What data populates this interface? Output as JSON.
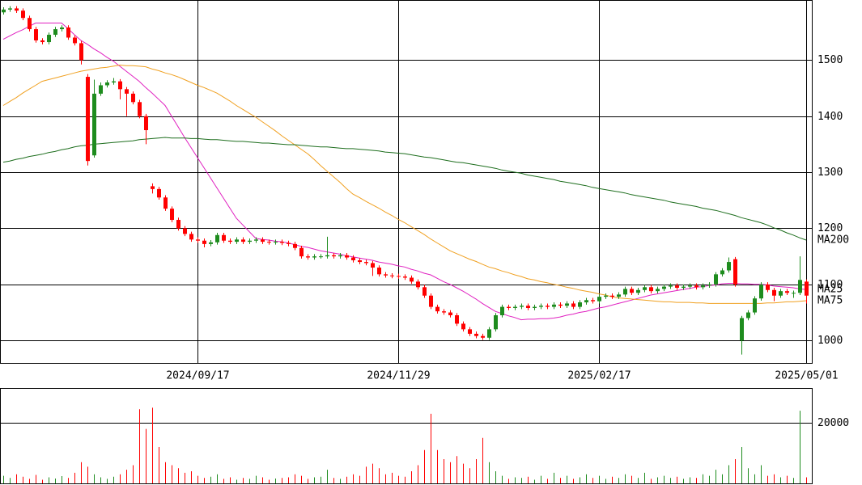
{
  "chart_data": {
    "type": "candlestick",
    "categories": [
      null,
      null,
      null,
      null,
      null,
      null,
      null,
      null,
      null,
      null,
      null,
      null,
      null,
      null,
      null,
      null,
      null,
      null,
      null,
      null,
      null,
      null,
      null,
      null,
      null,
      null,
      null,
      null,
      null,
      null,
      "2024/09/17",
      null,
      null,
      null,
      null,
      null,
      null,
      null,
      null,
      null,
      null,
      null,
      null,
      null,
      null,
      null,
      null,
      null,
      null,
      null,
      null,
      null,
      null,
      null,
      null,
      null,
      null,
      null,
      null,
      null,
      null,
      "2024/11/29",
      null,
      null,
      null,
      null,
      null,
      null,
      null,
      null,
      null,
      null,
      null,
      null,
      null,
      null,
      null,
      null,
      null,
      null,
      null,
      null,
      null,
      null,
      null,
      null,
      null,
      null,
      null,
      null,
      null,
      null,
      "2025/02/17",
      null,
      null,
      null,
      null,
      null,
      null,
      null,
      null,
      null,
      null,
      null,
      null,
      null,
      null,
      null,
      null,
      null,
      null,
      null,
      null,
      null,
      null,
      null,
      null,
      null,
      null,
      null,
      null,
      null,
      null,
      null,
      "2025/05/01"
    ],
    "open": [
      1585,
      1590,
      1592,
      1588,
      1575,
      1555,
      1535,
      1532,
      1545,
      1555,
      1558,
      1540,
      1530,
      1470,
      1330,
      1440,
      1455,
      1460,
      1462,
      1448,
      1440,
      1425,
      1400,
      1275,
      1270,
      1255,
      1235,
      1215,
      1200,
      1190,
      1180,
      1178,
      1172,
      1175,
      1188,
      1178,
      1176,
      1180,
      1176,
      1178,
      1180,
      1176,
      1175,
      1176,
      1174,
      1172,
      1165,
      1150,
      1148,
      1150,
      1150,
      1152,
      1150,
      1152,
      1148,
      1143,
      1140,
      1138,
      1130,
      1118,
      1116,
      1115,
      1114,
      1112,
      1105,
      1095,
      1080,
      1060,
      1052,
      1050,
      1045,
      1030,
      1020,
      1012,
      1008,
      1005,
      1020,
      1045,
      1060,
      1058,
      1060,
      1062,
      1058,
      1060,
      1062,
      1060,
      1064,
      1062,
      1066,
      1060,
      1068,
      1072,
      1070,
      1078,
      1080,
      1078,
      1082,
      1092,
      1085,
      1090,
      1095,
      1088,
      1092,
      1096,
      1098,
      1094,
      1096,
      1098,
      1095,
      1098,
      1100,
      1118,
      1125,
      1145,
      1000,
      1040,
      1050,
      1075,
      1100,
      1090,
      1080,
      1088,
      1085,
      1085,
      1105
    ],
    "high": [
      1594,
      1596,
      1596,
      1592,
      1579,
      1559,
      1539,
      1549,
      1559,
      1562,
      1562,
      1544,
      1534,
      1475,
      1465,
      1460,
      1464,
      1468,
      1466,
      1452,
      1444,
      1429,
      1404,
      1280,
      1274,
      1259,
      1239,
      1219,
      1204,
      1194,
      1184,
      1182,
      1179,
      1192,
      1192,
      1182,
      1184,
      1184,
      1182,
      1184,
      1184,
      1180,
      1180,
      1180,
      1178,
      1176,
      1169,
      1154,
      1154,
      1154,
      1185,
      1156,
      1156,
      1156,
      1152,
      1147,
      1144,
      1142,
      1134,
      1122,
      1120,
      1119,
      1118,
      1116,
      1109,
      1099,
      1084,
      1064,
      1056,
      1054,
      1049,
      1034,
      1024,
      1016,
      1012,
      1024,
      1049,
      1064,
      1064,
      1064,
      1066,
      1066,
      1064,
      1066,
      1066,
      1068,
      1068,
      1070,
      1070,
      1072,
      1076,
      1076,
      1082,
      1084,
      1084,
      1086,
      1096,
      1096,
      1094,
      1099,
      1099,
      1096,
      1100,
      1102,
      1102,
      1100,
      1102,
      1102,
      1102,
      1104,
      1122,
      1129,
      1148,
      1149,
      1044,
      1054,
      1079,
      1104,
      1104,
      1094,
      1092,
      1092,
      1089,
      1150,
      1109
    ],
    "low": [
      1581,
      1586,
      1584,
      1571,
      1551,
      1531,
      1528,
      1528,
      1541,
      1551,
      1536,
      1526,
      1492,
      1312,
      1326,
      1436,
      1451,
      1456,
      1430,
      1400,
      1421,
      1396,
      1350,
      1262,
      1251,
      1231,
      1211,
      1196,
      1186,
      1176,
      1174,
      1166,
      1168,
      1171,
      1174,
      1172,
      1172,
      1172,
      1172,
      1174,
      1172,
      1171,
      1171,
      1170,
      1168,
      1161,
      1146,
      1144,
      1144,
      1146,
      1146,
      1146,
      1146,
      1144,
      1139,
      1136,
      1134,
      1115,
      1114,
      1112,
      1111,
      1110,
      1108,
      1101,
      1091,
      1076,
      1056,
      1048,
      1046,
      1041,
      1026,
      1016,
      1008,
      1004,
      1001,
      1001,
      1016,
      1041,
      1054,
      1054,
      1056,
      1054,
      1054,
      1056,
      1056,
      1056,
      1058,
      1058,
      1056,
      1056,
      1064,
      1066,
      1066,
      1074,
      1074,
      1074,
      1078,
      1081,
      1081,
      1086,
      1084,
      1084,
      1088,
      1092,
      1090,
      1090,
      1092,
      1091,
      1091,
      1094,
      1096,
      1114,
      1121,
      1096,
      975,
      1036,
      1046,
      1071,
      1086,
      1070,
      1076,
      1081,
      1076,
      1081,
      1066
    ],
    "close": [
      1590,
      1592,
      1588,
      1575,
      1555,
      1535,
      1532,
      1545,
      1555,
      1558,
      1540,
      1530,
      1500,
      1320,
      1440,
      1455,
      1460,
      1462,
      1448,
      1440,
      1425,
      1400,
      1375,
      1270,
      1255,
      1235,
      1215,
      1200,
      1190,
      1180,
      1178,
      1172,
      1175,
      1188,
      1178,
      1176,
      1180,
      1176,
      1178,
      1180,
      1176,
      1175,
      1176,
      1174,
      1172,
      1165,
      1150,
      1148,
      1150,
      1150,
      1152,
      1150,
      1152,
      1148,
      1143,
      1140,
      1138,
      1130,
      1118,
      1116,
      1115,
      1114,
      1112,
      1105,
      1095,
      1080,
      1060,
      1052,
      1050,
      1045,
      1030,
      1020,
      1012,
      1008,
      1005,
      1020,
      1045,
      1060,
      1058,
      1060,
      1062,
      1058,
      1060,
      1062,
      1060,
      1064,
      1062,
      1066,
      1060,
      1068,
      1072,
      1070,
      1078,
      1080,
      1078,
      1082,
      1092,
      1085,
      1090,
      1095,
      1088,
      1092,
      1096,
      1098,
      1094,
      1096,
      1098,
      1095,
      1098,
      1100,
      1118,
      1125,
      1140,
      1100,
      1040,
      1050,
      1075,
      1100,
      1090,
      1080,
      1088,
      1085,
      1085,
      1108,
      1080
    ],
    "up_color": "#1e8c1e",
    "down_color": "#ff0000",
    "ylim": [
      960,
      1607
    ],
    "yticks": [
      1000,
      1100,
      1200,
      1300,
      1400,
      1500
    ],
    "moving_averages": [
      {
        "name": "MA25",
        "color": "#e020c0",
        "values": [
          1537,
          1543,
          1549,
          1554,
          1560,
          1566,
          1566,
          1566,
          1566,
          1566,
          1556,
          1545,
          1535,
          1528,
          1520,
          1513,
          1505,
          1498,
          1489,
          1480,
          1471,
          1462,
          1451,
          1441,
          1430,
          1419,
          1400,
          1381,
          1362,
          1344,
          1326,
          1308,
          1290,
          1272,
          1254,
          1236,
          1218,
          1206,
          1194,
          1182,
          1180,
          1179,
          1177,
          1176,
          1174,
          1171,
          1168,
          1166,
          1163,
          1160,
          1158,
          1156,
          1154,
          1151,
          1149,
          1147,
          1145,
          1143,
          1140,
          1138,
          1136,
          1133,
          1131,
          1127,
          1124,
          1120,
          1117,
          1111,
          1105,
          1100,
          1094,
          1088,
          1081,
          1074,
          1066,
          1059,
          1052,
          1048,
          1044,
          1041,
          1037,
          1038,
          1038,
          1039,
          1039,
          1040,
          1042,
          1045,
          1047,
          1050,
          1052,
          1055,
          1058,
          1060,
          1063,
          1066,
          1069,
          1072,
          1075,
          1078,
          1081,
          1083,
          1085,
          1087,
          1089,
          1091,
          1093,
          1095,
          1096,
          1098,
          1099,
          1101,
          1102,
          1102,
          1101,
          1101,
          1100,
          1100,
          1099,
          1097,
          1096,
          1095,
          1094,
          1092,
          1091
        ]
      },
      {
        "name": "MA75",
        "color": "#f0a020",
        "values": [
          1419,
          1426,
          1433,
          1441,
          1448,
          1455,
          1462,
          1465,
          1468,
          1471,
          1474,
          1477,
          1480,
          1482,
          1484,
          1486,
          1487,
          1489,
          1491,
          1490,
          1490,
          1489,
          1488,
          1484,
          1481,
          1477,
          1474,
          1470,
          1465,
          1460,
          1455,
          1451,
          1446,
          1441,
          1434,
          1427,
          1419,
          1412,
          1405,
          1398,
          1390,
          1382,
          1374,
          1365,
          1357,
          1349,
          1341,
          1333,
          1323,
          1312,
          1302,
          1292,
          1282,
          1271,
          1261,
          1255,
          1248,
          1242,
          1236,
          1229,
          1223,
          1216,
          1210,
          1203,
          1196,
          1189,
          1181,
          1174,
          1167,
          1160,
          1155,
          1150,
          1145,
          1141,
          1136,
          1131,
          1128,
          1124,
          1121,
          1117,
          1114,
          1110,
          1108,
          1105,
          1103,
          1100,
          1098,
          1095,
          1093,
          1090,
          1088,
          1086,
          1083,
          1081,
          1078,
          1076,
          1075,
          1074,
          1073,
          1072,
          1071,
          1070,
          1069,
          1069,
          1068,
          1068,
          1068,
          1067,
          1067,
          1066,
          1066,
          1066,
          1066,
          1066,
          1066,
          1066,
          1066,
          1066,
          1067,
          1067,
          1068,
          1069,
          1069,
          1070,
          1071
        ]
      },
      {
        "name": "MA200",
        "color": "#1e6e1e",
        "values": [
          1318,
          1320,
          1323,
          1325,
          1328,
          1330,
          1332,
          1335,
          1337,
          1340,
          1342,
          1345,
          1347,
          1348,
          1350,
          1351,
          1352,
          1353,
          1354,
          1355,
          1356,
          1358,
          1359,
          1360,
          1361,
          1362,
          1361,
          1361,
          1361,
          1360,
          1360,
          1359,
          1358,
          1358,
          1357,
          1356,
          1355,
          1355,
          1354,
          1353,
          1352,
          1352,
          1351,
          1350,
          1349,
          1349,
          1348,
          1347,
          1346,
          1345,
          1345,
          1344,
          1343,
          1342,
          1342,
          1341,
          1340,
          1339,
          1338,
          1336,
          1335,
          1334,
          1333,
          1331,
          1329,
          1327,
          1326,
          1324,
          1322,
          1320,
          1318,
          1317,
          1315,
          1313,
          1311,
          1309,
          1307,
          1304,
          1302,
          1300,
          1298,
          1295,
          1293,
          1291,
          1289,
          1287,
          1284,
          1282,
          1280,
          1278,
          1276,
          1273,
          1271,
          1269,
          1267,
          1265,
          1263,
          1260,
          1258,
          1256,
          1254,
          1252,
          1250,
          1247,
          1245,
          1243,
          1241,
          1239,
          1236,
          1234,
          1232,
          1229,
          1226,
          1223,
          1219,
          1216,
          1213,
          1210,
          1206,
          1201,
          1197,
          1192,
          1188,
          1183,
          1179
        ]
      }
    ],
    "volume": {
      "values": [
        2500,
        1800,
        3000,
        2200,
        1500,
        2800,
        1200,
        2000,
        1600,
        2400,
        1800,
        3500,
        7000,
        5500,
        3000,
        2000,
        1500,
        2200,
        3000,
        4500,
        6000,
        24500,
        18000,
        25000,
        12000,
        7000,
        6000,
        5000,
        3500,
        4000,
        2500,
        1800,
        2200,
        3000,
        1500,
        2000,
        1200,
        1800,
        1500,
        2500,
        2000,
        1200,
        1600,
        1800,
        2000,
        3000,
        2500,
        1500,
        2000,
        2200,
        4500,
        1800,
        1500,
        2200,
        3000,
        2500,
        5500,
        6500,
        5000,
        3000,
        3500,
        2500,
        2200,
        4000,
        6000,
        11000,
        23000,
        11000,
        8000,
        7000,
        9000,
        6500,
        5000,
        8000,
        15000,
        7000,
        4000,
        2500,
        1500,
        2000,
        1800,
        2200,
        1200,
        2500,
        1500,
        3500,
        1800,
        2500,
        1500,
        2000,
        3000,
        1800,
        2500,
        1500,
        2200,
        1800,
        3000,
        2500,
        1800,
        3500,
        1500,
        2000,
        2500,
        1800,
        2200,
        1500,
        2000,
        1800,
        3000,
        2500,
        4500,
        3000,
        6000,
        8000,
        12000,
        5000,
        3000,
        6000,
        2500,
        3000,
        2000,
        2500,
        1800,
        24000,
        2000
      ],
      "ylim": [
        0,
        31500
      ],
      "yticks": [
        20000
      ]
    }
  }
}
